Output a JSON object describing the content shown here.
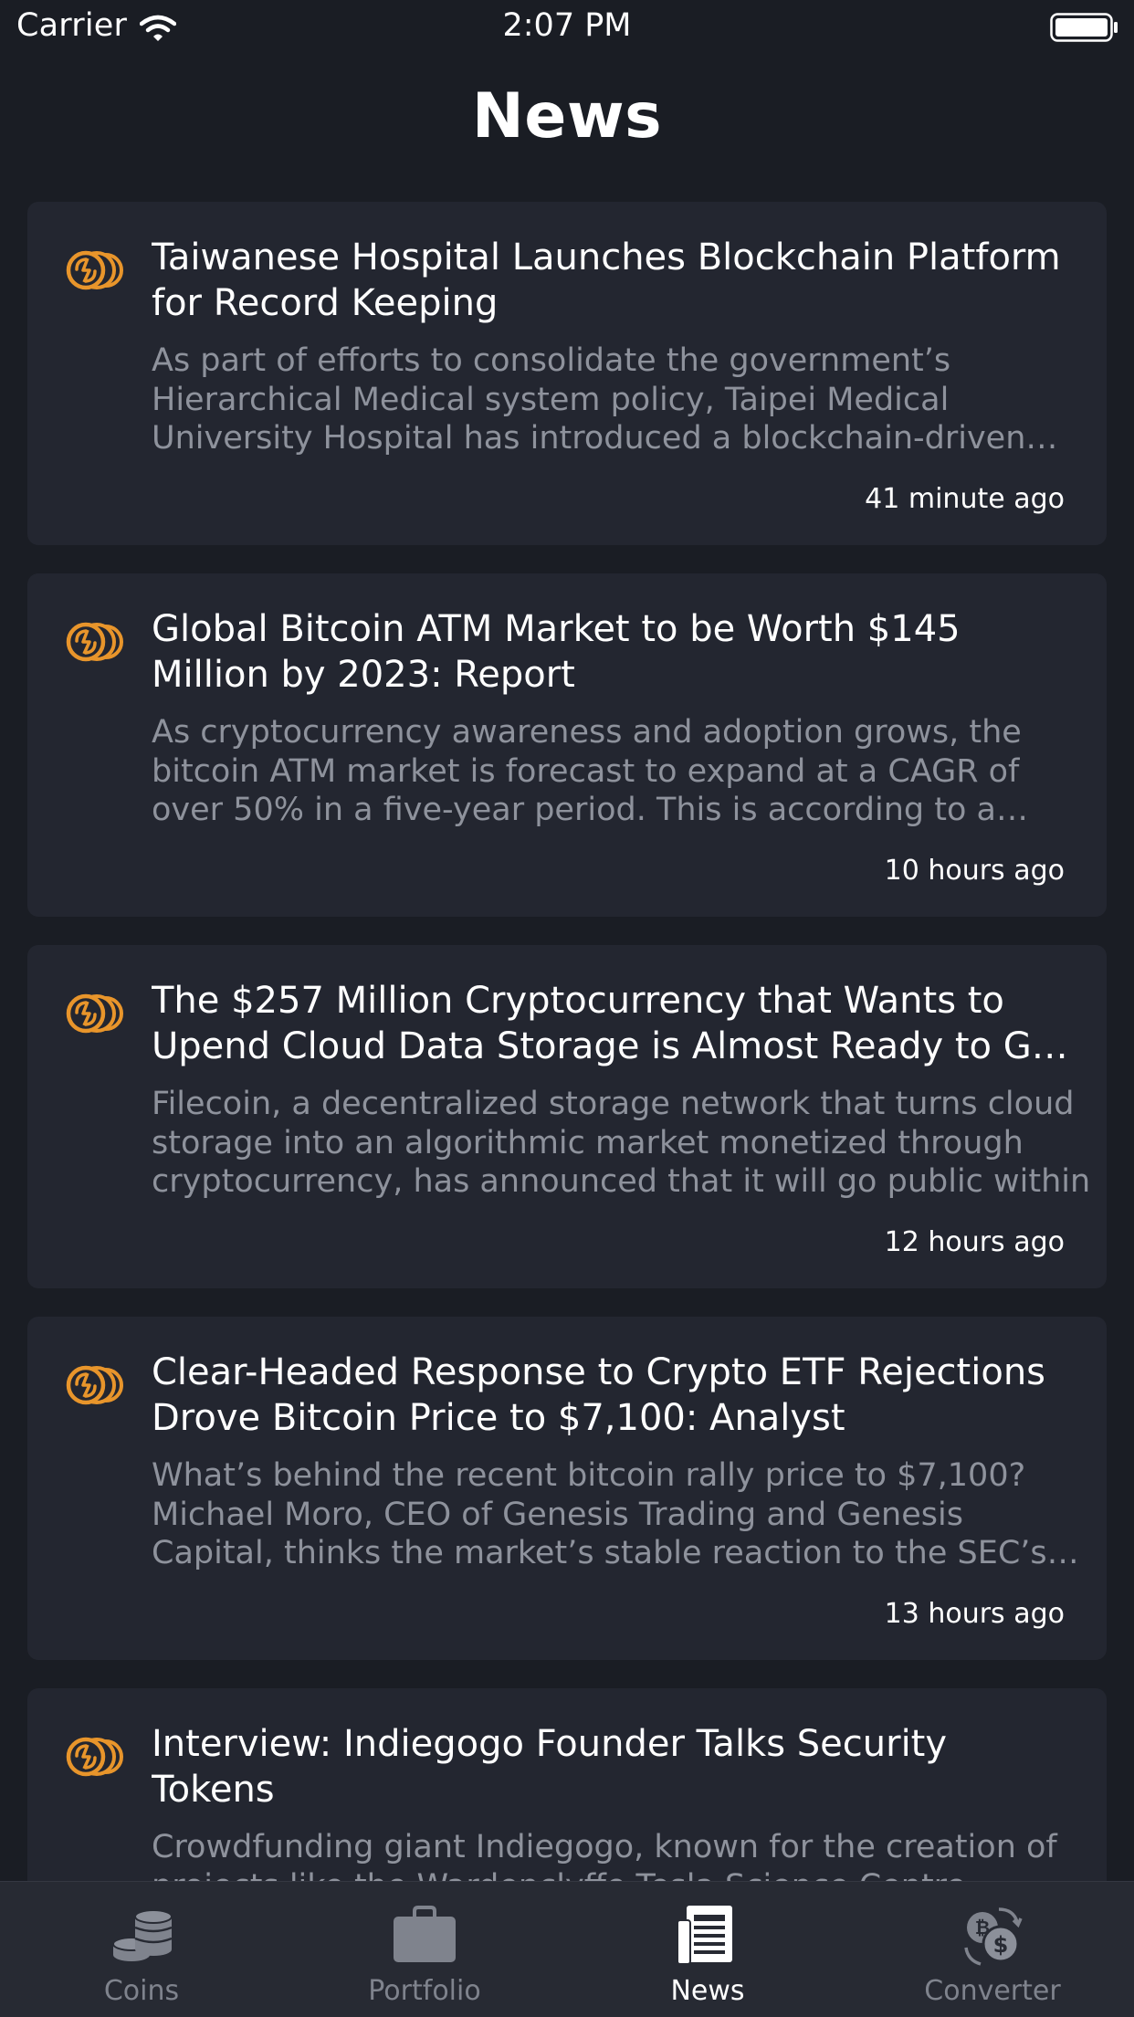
{
  "status_bar": {
    "carrier": "Carrier",
    "time": "2:07 PM"
  },
  "header": {
    "title": "News"
  },
  "news": [
    {
      "title": "Taiwanese Hospital Launches Blockchain Platform for Record Keeping",
      "excerpt": "As part of efforts to consolidate the government’s Hierarchical Medical system policy, Taipei Medical University Hospital has introduced a blockchain-driven platform",
      "time": "41 minute ago",
      "icon": "coin-source-logo-icon"
    },
    {
      "title": "Global Bitcoin ATM Market to be Worth $145 Million by 2023: Report",
      "excerpt": "As cryptocurrency awareness and adoption grows, the bitcoin ATM market is forecast to expand at a CAGR of over 50% in a five-year period. This is according to a study",
      "time": "10 hours ago",
      "icon": "coin-source-logo-icon"
    },
    {
      "title": "The $257 Million Cryptocurrency that Wants to Upend Cloud Data Storage is Almost Ready to Go Public",
      "excerpt": "Filecoin, a decentralized storage network that turns cloud storage into an algorithmic market monetized through cryptocurrency, has announced that it will go public within",
      "time": "12 hours ago",
      "icon": "coin-source-logo-icon"
    },
    {
      "title": "Clear-Headed Response to Crypto ETF Rejections Drove Bitcoin Price to $7,100: Analyst",
      "excerpt": "What’s behind the recent bitcoin rally price to $7,100? Michael Moro, CEO of Genesis Trading and Genesis Capital, thinks the market’s stable reaction to the SEC’s ETF",
      "time": "13 hours ago",
      "icon": "coin-source-logo-icon"
    },
    {
      "title": "Interview: Indiegogo Founder Talks Security Tokens",
      "excerpt": "Crowdfunding giant Indiegogo, known for the creation of projects like the Wardenclyffe Tesla Science Centre",
      "time": "",
      "icon": "coin-source-logo-icon"
    }
  ],
  "tab_bar": {
    "tabs": [
      {
        "label": "Coins",
        "icon": "coins-stack-icon",
        "active": false
      },
      {
        "label": "Portfolio",
        "icon": "briefcase-icon",
        "active": false
      },
      {
        "label": "News",
        "icon": "newspaper-icon",
        "active": true
      },
      {
        "label": "Converter",
        "icon": "currency-exchange-icon",
        "active": false
      }
    ]
  },
  "colors": {
    "background": "#1a1d24",
    "card": "#232630",
    "tab_bar": "#272a33",
    "accent_orange": "#e8952b",
    "muted_text": "#8e929c",
    "inactive_tab": "#7f838d"
  }
}
